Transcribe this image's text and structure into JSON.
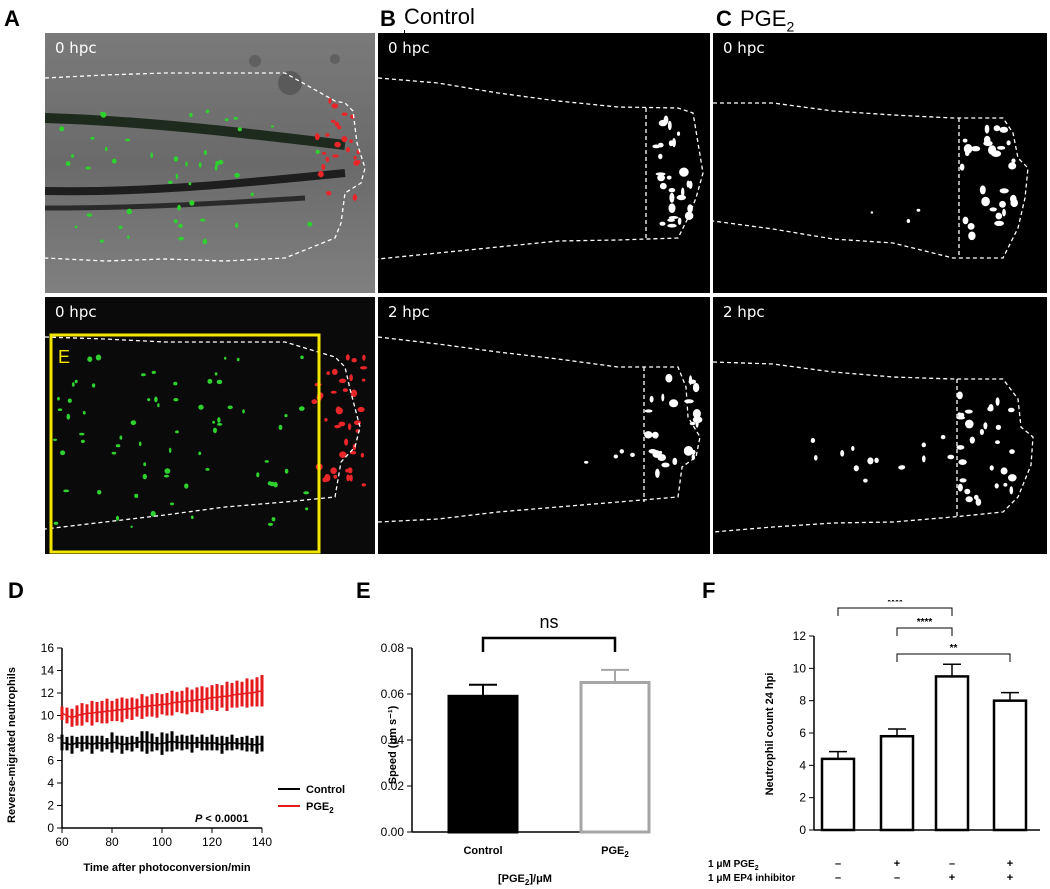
{
  "panels": {
    "A": "A",
    "B": "B",
    "C": "C",
    "D": "D",
    "E": "E",
    "F": "F"
  },
  "micrographs": {
    "col_b_title": "Control",
    "col_c_title_main": "PGE",
    "col_c_title_sub": "2",
    "labels": {
      "a_top": "0 hpc",
      "a_bottom": "0 hpc",
      "b_top": "0 hpc",
      "b_bottom": "2 hpc",
      "c_top": "0 hpc",
      "c_bottom": "2 hpc"
    },
    "roi_label": "E",
    "colors": {
      "roi": "#f2e600",
      "green": "#2fd12f",
      "red": "#e8262a"
    }
  },
  "chart_data": [
    {
      "id": "D",
      "type": "line",
      "xlabel": "Time after photoconversion/min",
      "ylabel": "Reverse-migrated neutrophils",
      "xlim": [
        60,
        140
      ],
      "ylim": [
        0,
        16
      ],
      "xticks": [
        60,
        80,
        100,
        120,
        140
      ],
      "yticks": [
        0,
        2,
        4,
        6,
        8,
        10,
        12,
        14,
        16
      ],
      "legend_position": "bottom-right",
      "annotation_p": "P",
      "annotation_rest": " < 0.0001",
      "series": [
        {
          "name": "Control",
          "color": "#000000",
          "x_start": 60,
          "x_step": 2,
          "mean": [
            7.6,
            7.5,
            7.4,
            7.6,
            7.5,
            7.6,
            7.4,
            7.6,
            7.5,
            7.5,
            7.6,
            7.6,
            7.4,
            7.5,
            7.5,
            7.6,
            7.7,
            7.6,
            7.6,
            7.5,
            7.5,
            7.6,
            7.7,
            7.6,
            7.6,
            7.6,
            7.5,
            7.6,
            7.6,
            7.5,
            7.6,
            7.5,
            7.4,
            7.5,
            7.6,
            7.5,
            7.5,
            7.5,
            7.4,
            7.4,
            7.5
          ],
          "err": [
            0.7,
            0.6,
            0.8,
            0.5,
            0.7,
            0.6,
            0.8,
            0.6,
            0.7,
            0.5,
            0.9,
            0.6,
            0.8,
            0.6,
            0.7,
            0.5,
            0.9,
            1.0,
            0.8,
            0.6,
            1.0,
            0.8,
            0.9,
            0.6,
            0.7,
            0.6,
            0.8,
            0.5,
            0.7,
            0.6,
            0.7,
            0.6,
            0.8,
            0.6,
            0.7,
            0.5,
            0.6,
            0.7,
            0.6,
            0.8,
            0.7
          ]
        },
        {
          "name": "PGE",
          "name_sub": "2",
          "color": "#e41a1c",
          "x_start": 60,
          "x_step": 2,
          "mean": [
            10.2,
            10.0,
            9.8,
            10.0,
            10.1,
            10.2,
            10.2,
            10.3,
            10.3,
            10.4,
            10.4,
            10.5,
            10.5,
            10.6,
            10.6,
            10.7,
            10.8,
            10.8,
            10.9,
            10.9,
            11.0,
            11.0,
            11.1,
            11.2,
            11.2,
            11.3,
            11.3,
            11.4,
            11.4,
            11.5,
            11.6,
            11.6,
            11.7,
            11.7,
            11.8,
            11.9,
            11.9,
            12.0,
            12.0,
            12.1,
            12.2
          ],
          "err": [
            0.6,
            0.7,
            0.8,
            0.9,
            1.0,
            0.8,
            1.1,
            0.9,
            1.0,
            1.1,
            0.9,
            1.0,
            1.1,
            0.9,
            1.0,
            0.8,
            1.1,
            0.9,
            1.0,
            1.1,
            0.9,
            1.0,
            1.1,
            0.9,
            1.0,
            1.2,
            1.0,
            1.1,
            1.2,
            1.0,
            1.1,
            1.2,
            1.0,
            1.3,
            1.1,
            1.2,
            1.1,
            1.3,
            1.2,
            1.3,
            1.4
          ]
        }
      ]
    },
    {
      "id": "E",
      "type": "bar",
      "categories": [
        "Control",
        "PGE"
      ],
      "category_subs": [
        "",
        "2"
      ],
      "values": [
        0.059,
        0.065
      ],
      "errors": [
        0.005,
        0.0055
      ],
      "fills": [
        "#000000",
        "#ffffff"
      ],
      "strokes": [
        "#000000",
        "#a6a6a6"
      ],
      "ylabel": "Speed (μm s⁻¹)",
      "xlabel_main": "[PGE",
      "xlabel_sub": "2",
      "xlabel_rest": "]/μM",
      "ylim": [
        0,
        0.08
      ],
      "yticks": [
        "0.00",
        "0.02",
        "0.04",
        "0.06",
        "0.08"
      ],
      "significance": "ns"
    },
    {
      "id": "F",
      "type": "bar",
      "values": [
        4.4,
        5.8,
        9.5,
        8.0
      ],
      "errors": [
        0.45,
        0.45,
        0.75,
        0.5
      ],
      "ylabel": "Neutrophil count 24 hpi",
      "ylim": [
        0,
        12
      ],
      "yticks": [
        0,
        2,
        4,
        6,
        8,
        10,
        12
      ],
      "treatments": [
        {
          "label_pre": "1 μM PGE",
          "label_sub": "2",
          "signs": [
            "–",
            "+",
            "–",
            "+"
          ]
        },
        {
          "label_pre": "1 μM EP4 inhibitor",
          "label_sub": "",
          "signs": [
            "–",
            "–",
            "+",
            "+"
          ]
        }
      ],
      "comparisons": [
        {
          "from": 0,
          "to": 2,
          "label": "****"
        },
        {
          "from": 1,
          "to": 2,
          "label": "****"
        },
        {
          "from": 1,
          "to": 3,
          "label": "**"
        }
      ]
    }
  ]
}
